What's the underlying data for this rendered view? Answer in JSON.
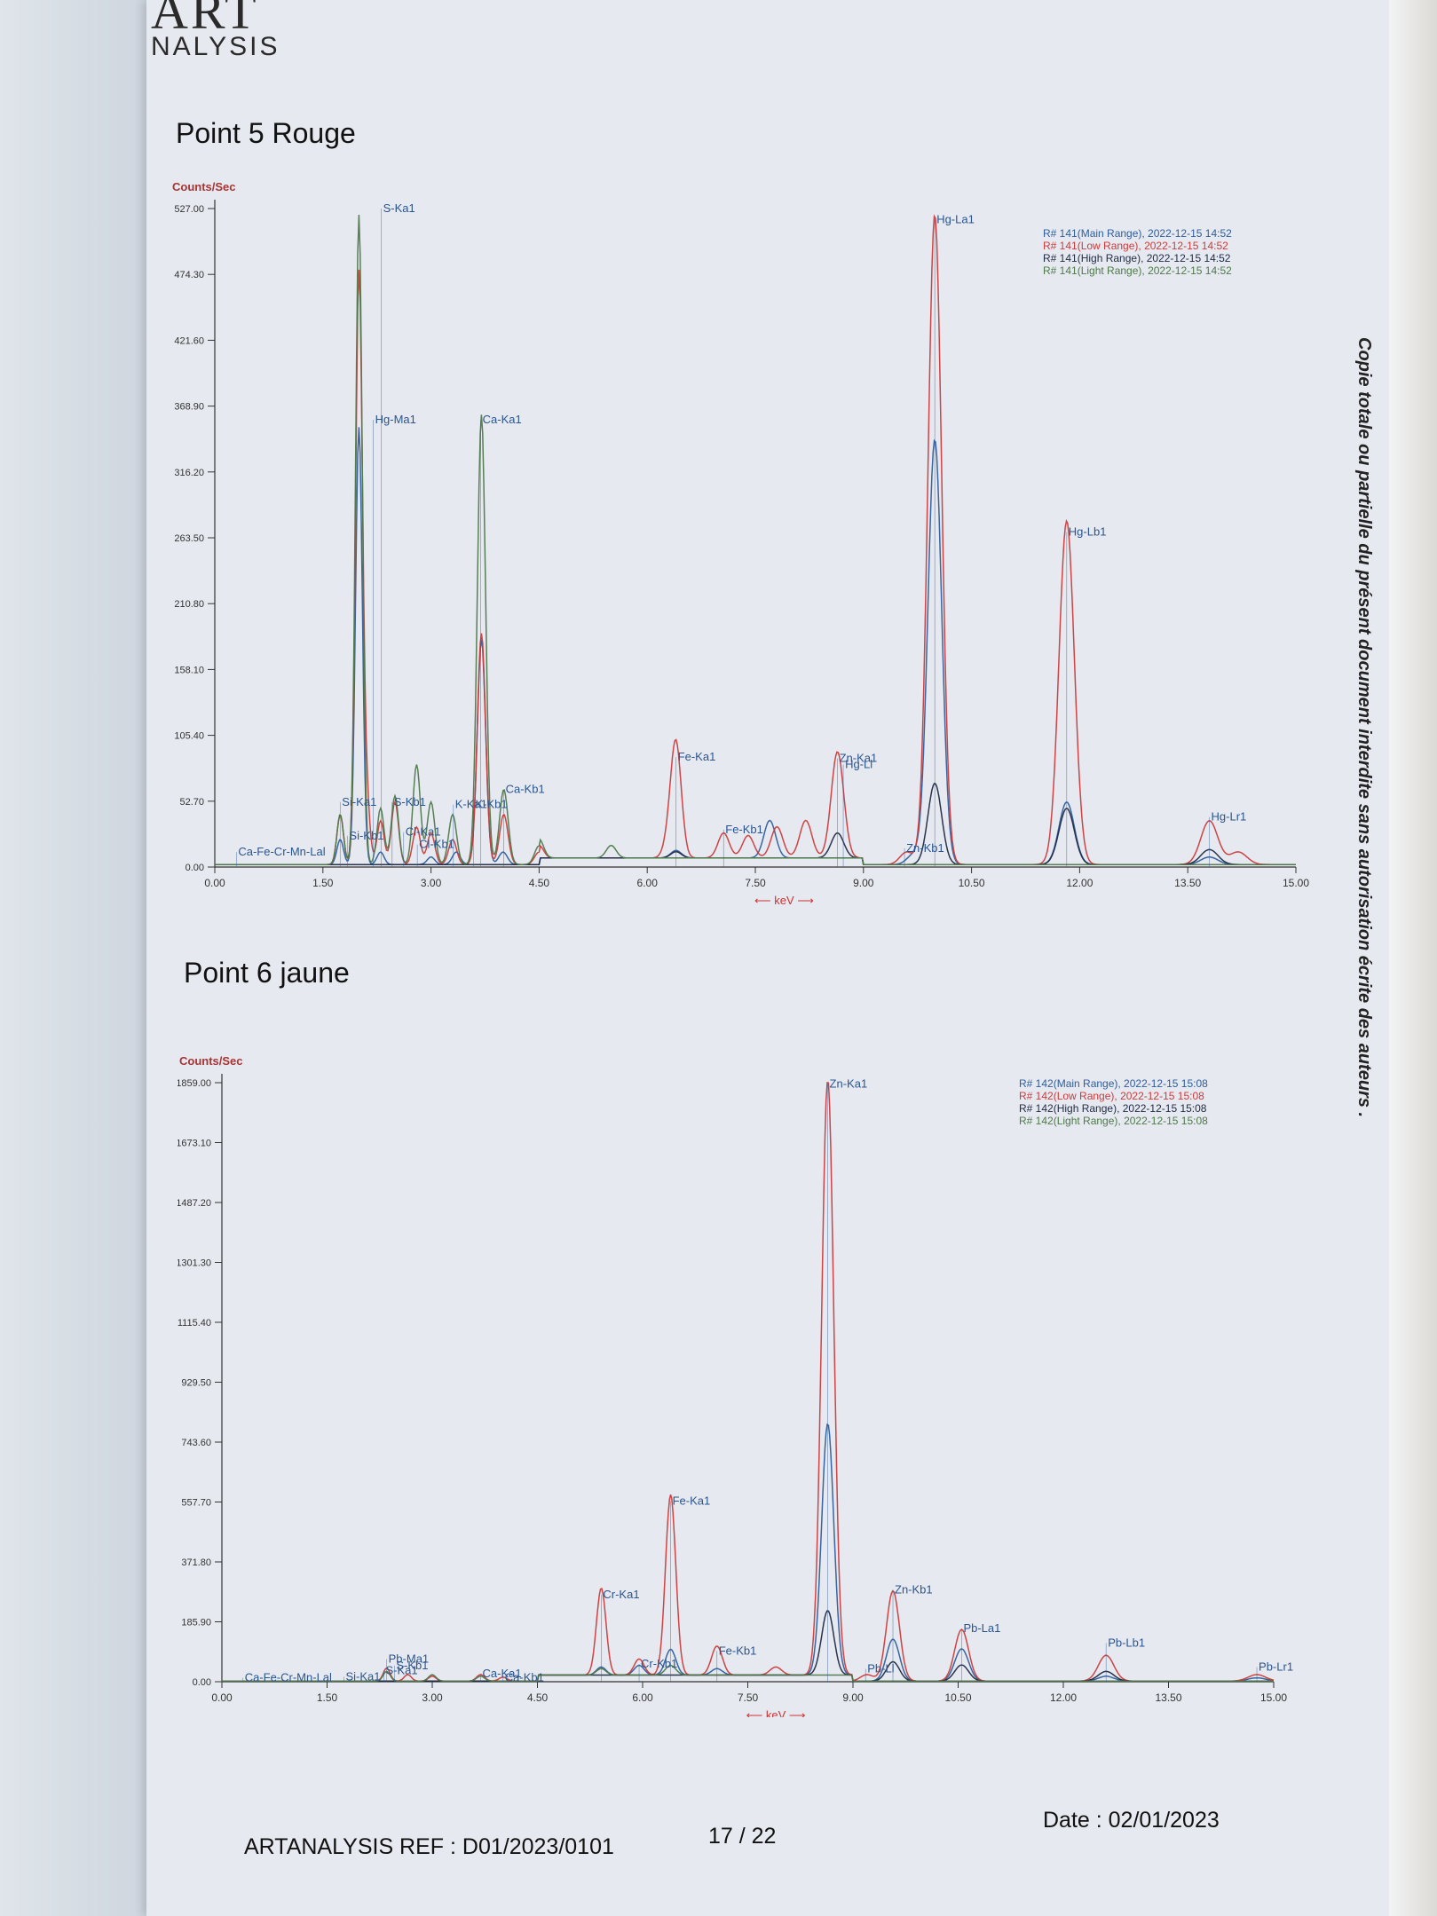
{
  "logo": {
    "line1": "ART",
    "line2": "NALYSIS"
  },
  "side_note": "Copie totale ou partielle du présent document interdite sans autorisation écrite des auteurs .",
  "footer": {
    "ref": "ARTANALYSIS REF : D01/2023/0101",
    "page": "17 / 22",
    "date": "Date : 02/01/2023"
  },
  "chart_data": [
    {
      "type": "line",
      "title": "Point 5 Rouge",
      "ylabel": "Counts/Sec",
      "xlabel": "keV",
      "xlim": [
        0,
        15
      ],
      "ylim": [
        0,
        527
      ],
      "x_ticks": [
        "0.00",
        "1.50",
        "3.00",
        "4.50",
        "6.00",
        "7.50",
        "9.00",
        "10.50",
        "12.00",
        "13.50",
        "15.00"
      ],
      "y_ticks": [
        "0.00",
        "52.70",
        "105.40",
        "158.10",
        "210.80",
        "263.50",
        "316.20",
        "368.90",
        "421.60",
        "474.30",
        "527.00"
      ],
      "legend_position": "top-right",
      "series": [
        {
          "name": "R# 141(Main Range), 2022-12-15 14:52",
          "color": "#2e5e9e",
          "peaks": [
            [
              1.74,
              20
            ],
            [
              2.0,
              350
            ],
            [
              2.3,
              10
            ],
            [
              3.0,
              6
            ],
            [
              3.35,
              10
            ],
            [
              3.7,
              180
            ],
            [
              4.0,
              10
            ],
            [
              6.4,
              6
            ],
            [
              7.7,
              30
            ],
            [
              9.7,
              8
            ],
            [
              9.99,
              340
            ],
            [
              11.82,
              50
            ],
            [
              13.8,
              6
            ]
          ]
        },
        {
          "name": "R# 141(Low Range), 2022-12-15 14:52",
          "color": "#cc3b3b",
          "peaks": [
            [
              1.74,
              40
            ],
            [
              2.0,
              470
            ],
            [
              2.1,
              55
            ],
            [
              2.3,
              35
            ],
            [
              2.5,
              50
            ],
            [
              2.8,
              30
            ],
            [
              3.0,
              25
            ],
            [
              3.3,
              20
            ],
            [
              3.7,
              185
            ],
            [
              4.01,
              40
            ],
            [
              4.5,
              10
            ],
            [
              6.4,
              90
            ],
            [
              6.3,
              12
            ],
            [
              7.06,
              20
            ],
            [
              7.4,
              18
            ],
            [
              7.8,
              25
            ],
            [
              8.2,
              30
            ],
            [
              8.64,
              85
            ],
            [
              9.6,
              10
            ],
            [
              9.99,
              520
            ],
            [
              11.82,
              275
            ],
            [
              13.8,
              35
            ],
            [
              14.2,
              10
            ]
          ]
        },
        {
          "name": "R# 141(High Range), 2022-12-15 14:52",
          "color": "#1f2a44",
          "peaks": [
            [
              9.99,
              65
            ],
            [
              11.82,
              45
            ],
            [
              13.8,
              12
            ],
            [
              8.64,
              20
            ],
            [
              6.4,
              5
            ]
          ]
        },
        {
          "name": "R# 141(Light Range), 2022-12-15 14:52",
          "color": "#4e7a4a",
          "peaks": [
            [
              1.74,
              40
            ],
            [
              2.0,
              520
            ],
            [
              2.3,
              45
            ],
            [
              2.5,
              55
            ],
            [
              2.8,
              80
            ],
            [
              3.0,
              50
            ],
            [
              3.3,
              40
            ],
            [
              3.7,
              360
            ],
            [
              4.01,
              60
            ],
            [
              4.5,
              15
            ],
            [
              5.5,
              10
            ]
          ]
        }
      ],
      "annotations": [
        {
          "label": "S-Ka1",
          "x": 2.31,
          "y": 527
        },
        {
          "label": "Hg-Ma1",
          "x": 2.2,
          "y": 358
        },
        {
          "label": "Ca-Ka1",
          "x": 3.69,
          "y": 358
        },
        {
          "label": "Hg-La1",
          "x": 9.99,
          "y": 518
        },
        {
          "label": "Hg-Lb1",
          "x": 11.82,
          "y": 268
        },
        {
          "label": "Fe-Ka1",
          "x": 6.4,
          "y": 88
        },
        {
          "label": "Zn-Ka1",
          "x": 8.64,
          "y": 87
        },
        {
          "label": "Hg-Ll",
          "x": 8.72,
          "y": 82
        },
        {
          "label": "Fe-Kb1",
          "x": 7.06,
          "y": 30
        },
        {
          "label": "Ca-Kb1",
          "x": 4.01,
          "y": 62
        },
        {
          "label": "Hg-Lr1",
          "x": 13.8,
          "y": 40
        },
        {
          "label": "Zn-Kb1",
          "x": 9.57,
          "y": 15
        },
        {
          "label": "Si-Ka1",
          "x": 1.74,
          "y": 52
        },
        {
          "label": "Si-Kb1",
          "x": 1.84,
          "y": 25
        },
        {
          "label": "S-Kb1",
          "x": 2.46,
          "y": 52
        },
        {
          "label": "K-Ka1",
          "x": 3.31,
          "y": 50
        },
        {
          "label": "K-Kb1",
          "x": 3.59,
          "y": 50
        },
        {
          "label": "Cl-Ka1",
          "x": 2.62,
          "y": 28
        },
        {
          "label": "Cl-Kb1",
          "x": 2.81,
          "y": 18
        },
        {
          "label": "Ca-Fe-Cr-Mn-Lal",
          "x": 0.3,
          "y": 12
        }
      ]
    },
    {
      "type": "line",
      "title": "Point 6 jaune",
      "ylabel": "Counts/Sec",
      "xlabel": "keV",
      "xlim": [
        0,
        15
      ],
      "ylim": [
        0,
        1859
      ],
      "x_ticks": [
        "0.00",
        "1.50",
        "3.00",
        "4.50",
        "6.00",
        "7.50",
        "9.00",
        "10.50",
        "12.00",
        "13.50",
        "15.00"
      ],
      "y_ticks": [
        "0.00",
        "185.90",
        "371.80",
        "557.70",
        "743.60",
        "929.50",
        "1115.40",
        "1301.30",
        "1487.20",
        "1673.10",
        "1859.00"
      ],
      "legend_position": "top-right",
      "series": [
        {
          "name": "R# 142(Main Range), 2022-12-15 15:08",
          "color": "#2e5e9e",
          "peaks": [
            [
              5.41,
              25
            ],
            [
              5.95,
              30
            ],
            [
              6.4,
              80
            ],
            [
              7.06,
              20
            ],
            [
              8.64,
              780
            ],
            [
              9.57,
              130
            ],
            [
              10.55,
              100
            ],
            [
              12.61,
              15
            ],
            [
              14.76,
              10
            ]
          ]
        },
        {
          "name": "R# 142(Low Range), 2022-12-15 15:08",
          "color": "#cc3b3b",
          "peaks": [
            [
              2.35,
              40
            ],
            [
              2.65,
              20
            ],
            [
              3.0,
              15
            ],
            [
              3.69,
              20
            ],
            [
              4.01,
              12
            ],
            [
              5.41,
              270
            ],
            [
              5.95,
              50
            ],
            [
              6.4,
              560
            ],
            [
              7.06,
              90
            ],
            [
              7.9,
              25
            ],
            [
              8.64,
              1850
            ],
            [
              9.2,
              20
            ],
            [
              9.57,
              280
            ],
            [
              10.55,
              160
            ],
            [
              12.61,
              80
            ],
            [
              14.76,
              20
            ]
          ]
        },
        {
          "name": "R# 142(High Range), 2022-12-15 15:08",
          "color": "#1f2a44",
          "peaks": [
            [
              8.64,
              200
            ],
            [
              9.57,
              60
            ],
            [
              10.55,
              50
            ],
            [
              12.61,
              30
            ]
          ]
        },
        {
          "name": "R# 142(Light Range), 2022-12-15 15:08",
          "color": "#4e7a4a",
          "peaks": [
            [
              2.35,
              30
            ],
            [
              3.0,
              20
            ],
            [
              3.69,
              15
            ],
            [
              5.41,
              20
            ],
            [
              6.4,
              30
            ]
          ]
        }
      ],
      "annotations": [
        {
          "label": "Zn-Ka1",
          "x": 8.64,
          "y": 1855
        },
        {
          "label": "Fe-Ka1",
          "x": 6.4,
          "y": 560
        },
        {
          "label": "Cr-Ka1",
          "x": 5.41,
          "y": 270
        },
        {
          "label": "Zn-Kb1",
          "x": 9.57,
          "y": 285
        },
        {
          "label": "Pb-La1",
          "x": 10.55,
          "y": 165
        },
        {
          "label": "Pb-Lb1",
          "x": 12.61,
          "y": 120
        },
        {
          "label": "Pb-Lr1",
          "x": 14.76,
          "y": 45
        },
        {
          "label": "Fe-Kb1",
          "x": 7.06,
          "y": 95
        },
        {
          "label": "Cr-Kb1",
          "x": 5.95,
          "y": 55
        },
        {
          "label": "Pb-Ll",
          "x": 9.18,
          "y": 40
        },
        {
          "label": "Pb-Ma1",
          "x": 2.35,
          "y": 70
        },
        {
          "label": "S-Kb1",
          "x": 2.46,
          "y": 50
        },
        {
          "label": "S-Ka1",
          "x": 2.31,
          "y": 35
        },
        {
          "label": "Si-Ka1",
          "x": 1.74,
          "y": 15
        },
        {
          "label": "Ca-Ka1",
          "x": 3.69,
          "y": 25
        },
        {
          "label": "Ca-Kb1",
          "x": 4.01,
          "y": 12
        },
        {
          "label": "Ca-Fe-Cr-Mn-Lal",
          "x": 0.3,
          "y": 12
        }
      ]
    }
  ]
}
